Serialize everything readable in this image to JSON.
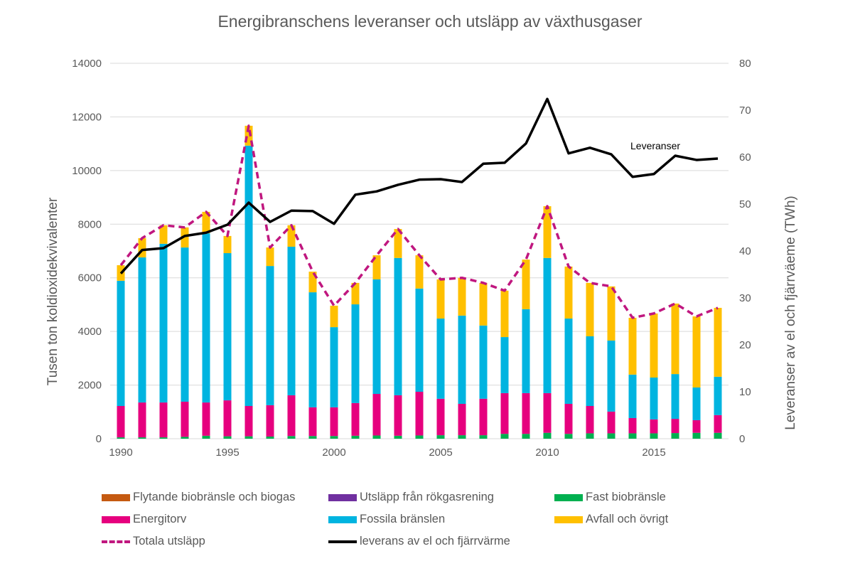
{
  "chart_data": {
    "type": "bar",
    "subtype": "stacked-bar-with-lines",
    "title": "Energibranschens leveranser och utsläpp av växthusgaser",
    "xlabel": "",
    "ylabel": "Tusen ton koldioxidekvivalenter",
    "y2label": "Leveranser av el och fjärrväeme (TWh)",
    "ylim": [
      0,
      14000
    ],
    "y2lim": [
      0,
      80
    ],
    "yticks": [
      "0",
      "2000",
      "4000",
      "6000",
      "8000",
      "10000",
      "12000",
      "14000"
    ],
    "y2ticks": [
      "0",
      "10",
      "20",
      "30",
      "40",
      "50",
      "60",
      "70",
      "80"
    ],
    "xticks": [
      "1990",
      "1995",
      "2000",
      "2005",
      "2010",
      "2015"
    ],
    "grid": true,
    "legend_position": "bottom",
    "annotation": "Leveranser",
    "categories": [
      1990,
      1991,
      1992,
      1993,
      1994,
      1995,
      1996,
      1997,
      1998,
      1999,
      2000,
      2001,
      2002,
      2003,
      2004,
      2005,
      2006,
      2007,
      2008,
      2009,
      2010,
      2011,
      2012,
      2013,
      2014,
      2015,
      2016,
      2017,
      2018
    ],
    "series": [
      {
        "name": "Flytande biobränsle och biogas",
        "type": "bar",
        "color": "#C55A11",
        "values": [
          0,
          0,
          0,
          0,
          0,
          0,
          0,
          0,
          0,
          0,
          0,
          0,
          0,
          0,
          0,
          0,
          0,
          0,
          0,
          0,
          0,
          0,
          0,
          0,
          0,
          0,
          0,
          0,
          0
        ]
      },
      {
        "name": "Utsläpp från rökgasrening",
        "type": "bar",
        "color": "#7030A0",
        "values": [
          0,
          0,
          0,
          0,
          0,
          0,
          0,
          0,
          0,
          0,
          0,
          0,
          0,
          0,
          0,
          0,
          0,
          0,
          0,
          0,
          0,
          0,
          0,
          0,
          0,
          0,
          0,
          0,
          0
        ]
      },
      {
        "name": "Fast biobränsle",
        "type": "bar",
        "color": "#00B050",
        "values": [
          50,
          50,
          50,
          70,
          110,
          90,
          90,
          80,
          100,
          100,
          100,
          110,
          120,
          110,
          120,
          130,
          130,
          130,
          180,
          180,
          220,
          180,
          200,
          200,
          200,
          200,
          210,
          220,
          220
        ]
      },
      {
        "name": "Energitorv",
        "type": "bar",
        "color": "#E6007E",
        "values": [
          1170,
          1300,
          1300,
          1310,
          1240,
          1340,
          1130,
          1170,
          1520,
          1070,
          1070,
          1220,
          1550,
          1510,
          1630,
          1360,
          1170,
          1360,
          1520,
          1520,
          1480,
          1120,
          1020,
          810,
          570,
          520,
          530,
          470,
          660
        ]
      },
      {
        "name": "Fossila bränslen",
        "type": "bar",
        "color": "#00B4E0",
        "values": [
          4670,
          5410,
          5920,
          5750,
          6310,
          5490,
          9710,
          5190,
          5540,
          4290,
          2990,
          3680,
          4270,
          5120,
          3850,
          2990,
          3290,
          2730,
          2090,
          3130,
          5040,
          3180,
          2600,
          2650,
          1620,
          1560,
          1670,
          1220,
          1430
        ]
      },
      {
        "name": "Avfall och övrigt",
        "type": "bar",
        "color": "#FFC000",
        "values": [
          580,
          720,
          690,
          750,
          800,
          640,
          740,
          690,
          800,
          770,
          800,
          800,
          900,
          1080,
          1240,
          1460,
          1410,
          1590,
          1730,
          1850,
          1930,
          1940,
          1990,
          2020,
          2120,
          2390,
          2630,
          2650,
          2570
        ]
      },
      {
        "name": "Totala utsläpp",
        "type": "line",
        "style": "dashed",
        "color": "#C0177F",
        "axis": "left",
        "values": [
          6470,
          7480,
          7960,
          7880,
          8460,
          7560,
          11670,
          7130,
          7960,
          6230,
          4960,
          5810,
          6840,
          7820,
          6840,
          5940,
          6000,
          5810,
          5520,
          6680,
          8670,
          6420,
          5810,
          5680,
          4510,
          4670,
          5040,
          4560,
          4880
        ]
      },
      {
        "name": "leverans av el och fjärrvärme",
        "type": "line",
        "style": "solid",
        "color": "#000000",
        "axis": "right",
        "values": [
          35.2,
          40.2,
          40.6,
          43.2,
          43.9,
          45.6,
          50.3,
          46.2,
          48.6,
          48.5,
          45.8,
          52.0,
          52.7,
          54.1,
          55.2,
          55.3,
          54.7,
          58.6,
          58.8,
          62.9,
          72.4,
          60.8,
          62.0,
          60.6,
          55.8,
          56.4,
          60.3,
          59.4,
          59.7
        ]
      }
    ]
  },
  "legend": {
    "items": [
      {
        "label": "Flytande biobränsle och biogas",
        "color": "#C55A11",
        "kind": "box"
      },
      {
        "label": "Utsläpp från rökgasrening",
        "color": "#7030A0",
        "kind": "box"
      },
      {
        "label": "Fast biobränsle",
        "color": "#00B050",
        "kind": "box"
      },
      {
        "label": "Energitorv",
        "color": "#E6007E",
        "kind": "box"
      },
      {
        "label": "Fossila bränslen",
        "color": "#00B4E0",
        "kind": "box"
      },
      {
        "label": "Avfall och övrigt",
        "color": "#FFC000",
        "kind": "box"
      },
      {
        "label": "Totala utsläpp",
        "color": "#C0177F",
        "kind": "dashed"
      },
      {
        "label": "leverans av el och fjärrvärme",
        "color": "#000000",
        "kind": "solid"
      }
    ]
  }
}
